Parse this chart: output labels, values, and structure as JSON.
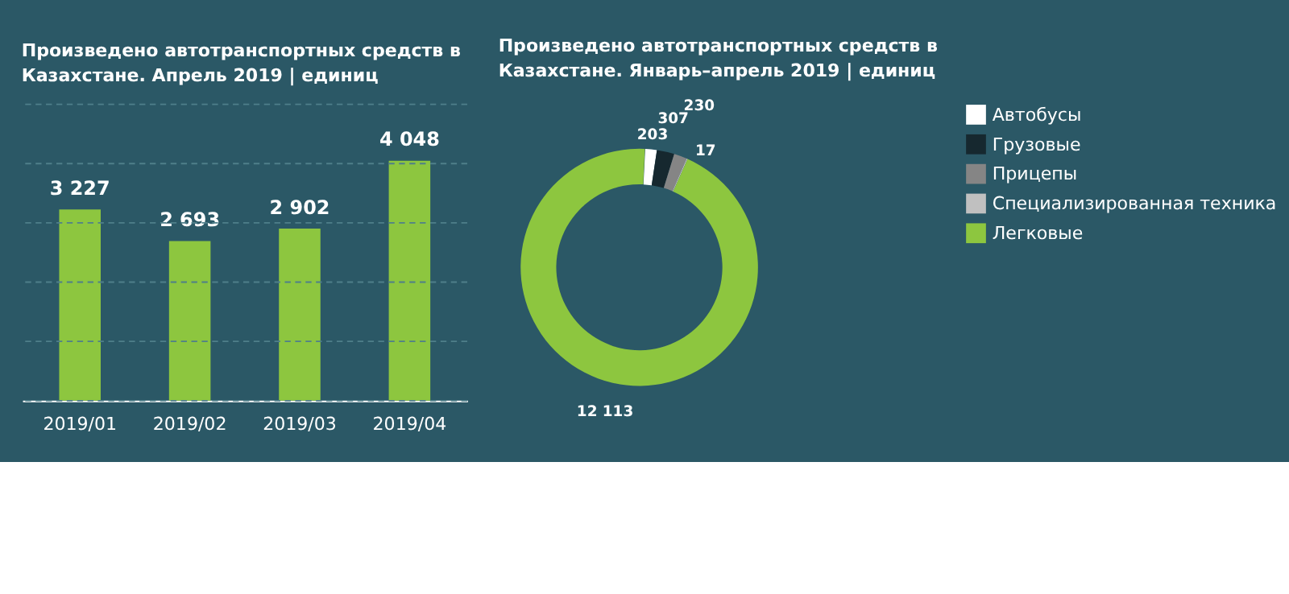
{
  "chart_data": [
    {
      "type": "bar",
      "title": "Произведено автотранспортных средств в Казахстане. Апрель 2019 | единиц",
      "categories": [
        "2019/01",
        "2019/02",
        "2019/03",
        "2019/04"
      ],
      "values": [
        3227,
        2693,
        2902,
        4048
      ],
      "color": "#8dc63f",
      "ylim": [
        0,
        5000
      ],
      "yticks": [
        {
          "value": 0,
          "label": null
        },
        {
          "value": 1000,
          "label": null
        },
        {
          "value": 2000,
          "label": null
        },
        {
          "value": 3000,
          "label": null
        },
        {
          "value": 4000,
          "label": null
        },
        {
          "value": 5000,
          "label": null
        }
      ],
      "grid": "y",
      "tick_labels": "x",
      "data_labels": true,
      "value_labels": [
        "3 227",
        "2 693",
        "2 902",
        "4 048"
      ]
    },
    {
      "type": "donut",
      "title": "Произведено автотранспортных средств в Казахстане. Январь–апрель 2019 | единиц",
      "categories": [
        "Автобусы",
        "Грузовые",
        "Прицепы",
        "Специализированная техника",
        "Легковые"
      ],
      "values": [
        203,
        307,
        230,
        17,
        12113
      ],
      "colors": [
        "#ffffff",
        "#16282f",
        "#858585",
        "#c0c0c0",
        "#8dc63f"
      ],
      "value_labels": [
        "203",
        "307",
        "230",
        "17",
        "12 113"
      ],
      "data_labels": true,
      "legend": "right"
    }
  ]
}
